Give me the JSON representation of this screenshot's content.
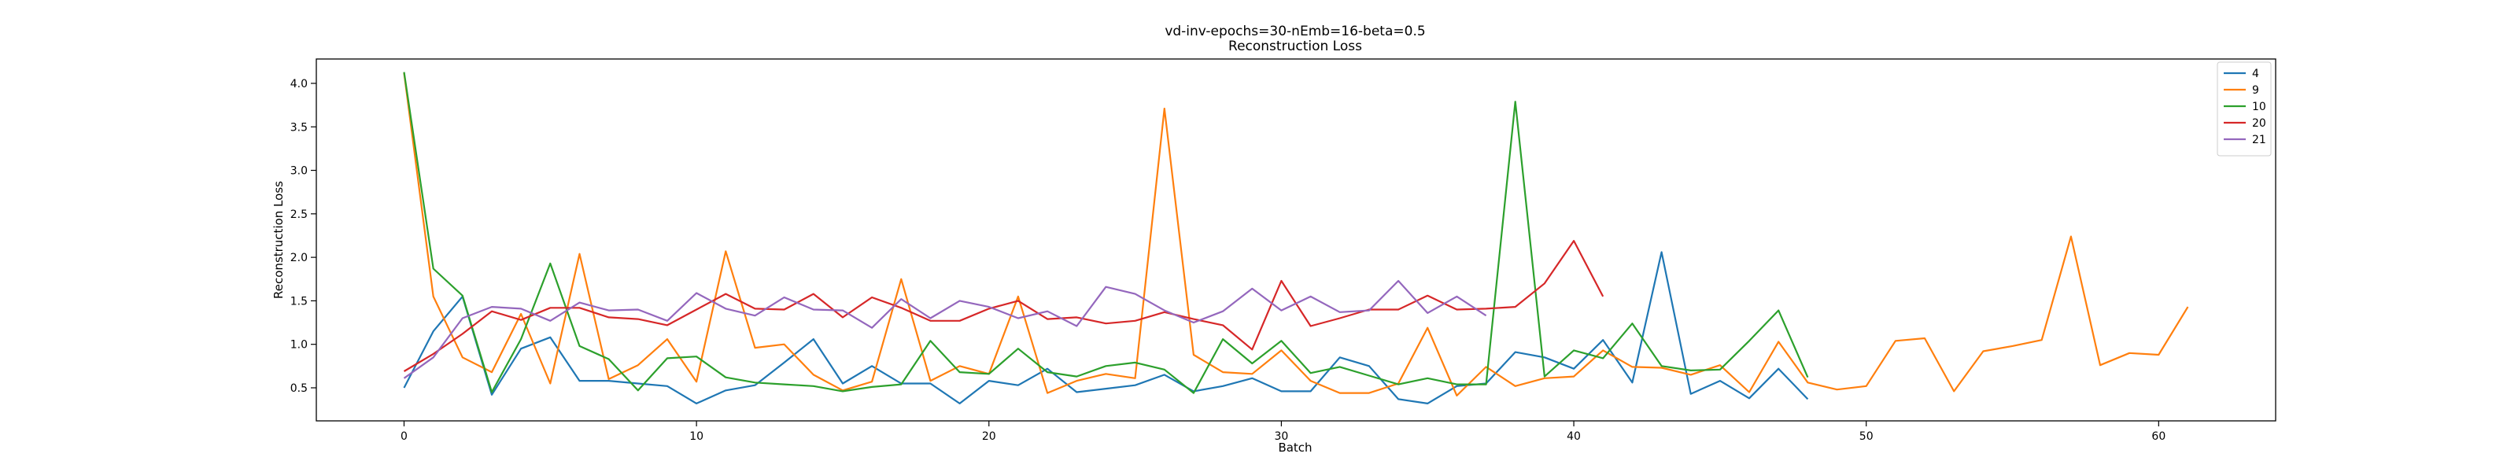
{
  "chart_data": {
    "type": "line",
    "title": "vd-inv-epochs=30-nEmb=16-beta=0.5",
    "subtitle": "Reconstruction Loss",
    "xlabel": "Batch",
    "ylabel": "Reconstruction Loss",
    "xlim": [
      -3,
      64
    ],
    "ylim": [
      0.12,
      4.28
    ],
    "xticks": [
      0,
      10,
      20,
      30,
      40,
      50,
      60
    ],
    "yticks": [
      0.5,
      1.0,
      1.5,
      2.0,
      2.5,
      3.0,
      3.5,
      4.0
    ],
    "ytick_labels": [
      "0.5",
      "1.0",
      "1.5",
      "2.0",
      "2.5",
      "3.0",
      "3.5",
      "4.0"
    ],
    "grid": false,
    "legend_position": "top-right",
    "series": [
      {
        "name": "4",
        "color": "#1f77b4",
        "values": [
          0.5,
          1.15,
          1.55,
          0.42,
          0.95,
          1.08,
          0.58,
          0.58,
          0.55,
          0.52,
          0.32,
          0.47,
          0.53,
          0.79,
          1.06,
          0.55,
          0.75,
          0.55,
          0.55,
          0.32,
          0.58,
          0.53,
          0.72,
          0.45,
          0.49,
          0.53,
          0.65,
          0.46,
          0.52,
          0.61,
          0.46,
          0.46,
          0.85,
          0.75,
          0.37,
          0.32,
          0.52,
          0.55,
          0.91,
          0.85,
          0.72,
          1.05,
          0.56,
          2.06,
          0.43,
          0.58,
          0.38,
          0.72,
          0.37
        ]
      },
      {
        "name": "9",
        "color": "#ff7f0e",
        "values": [
          4.12,
          1.55,
          0.85,
          0.68,
          1.35,
          0.55,
          2.04,
          0.6,
          0.76,
          1.06,
          0.57,
          2.07,
          0.96,
          1.0,
          0.65,
          0.47,
          0.57,
          1.75,
          0.58,
          0.75,
          0.66,
          1.55,
          0.44,
          0.58,
          0.66,
          0.61,
          3.71,
          0.88,
          0.68,
          0.66,
          0.93,
          0.58,
          0.44,
          0.44,
          0.55,
          1.19,
          0.41,
          0.74,
          0.52,
          0.61,
          0.63,
          0.93,
          0.74,
          0.73,
          0.65,
          0.76,
          0.45,
          1.03,
          0.56,
          0.48,
          0.52,
          1.04,
          1.07,
          0.46,
          0.92,
          0.98,
          1.05,
          2.24,
          0.76,
          0.9,
          0.88,
          1.43
        ]
      },
      {
        "name": "10",
        "color": "#2ca02c",
        "values": [
          4.13,
          1.87,
          1.56,
          0.45,
          1.06,
          1.93,
          0.98,
          0.83,
          0.47,
          0.84,
          0.86,
          0.62,
          0.56,
          0.54,
          0.52,
          0.46,
          0.51,
          0.54,
          1.04,
          0.68,
          0.66,
          0.95,
          0.68,
          0.63,
          0.75,
          0.79,
          0.71,
          0.44,
          1.06,
          0.78,
          1.04,
          0.67,
          0.74,
          0.64,
          0.54,
          0.61,
          0.54,
          0.54,
          3.79,
          0.63,
          0.93,
          0.84,
          1.24,
          0.75,
          0.7,
          0.71,
          1.04,
          1.39,
          0.62
        ]
      },
      {
        "name": "20",
        "color": "#d62728",
        "values": [
          0.69,
          0.89,
          1.12,
          1.38,
          1.28,
          1.42,
          1.42,
          1.31,
          1.29,
          1.22,
          1.4,
          1.58,
          1.41,
          1.4,
          1.58,
          1.31,
          1.54,
          1.42,
          1.27,
          1.27,
          1.41,
          1.5,
          1.29,
          1.31,
          1.24,
          1.27,
          1.37,
          1.29,
          1.22,
          0.94,
          1.73,
          1.21,
          1.3,
          1.4,
          1.4,
          1.56,
          1.4,
          1.41,
          1.43,
          1.7,
          2.19,
          1.55
        ]
      },
      {
        "name": "21",
        "color": "#9467bd",
        "values": [
          0.61,
          0.85,
          1.3,
          1.43,
          1.41,
          1.27,
          1.48,
          1.39,
          1.4,
          1.27,
          1.59,
          1.41,
          1.33,
          1.54,
          1.4,
          1.39,
          1.19,
          1.52,
          1.3,
          1.5,
          1.43,
          1.3,
          1.38,
          1.21,
          1.66,
          1.58,
          1.39,
          1.25,
          1.38,
          1.64,
          1.39,
          1.55,
          1.37,
          1.39,
          1.73,
          1.36,
          1.55,
          1.33
        ]
      }
    ]
  }
}
